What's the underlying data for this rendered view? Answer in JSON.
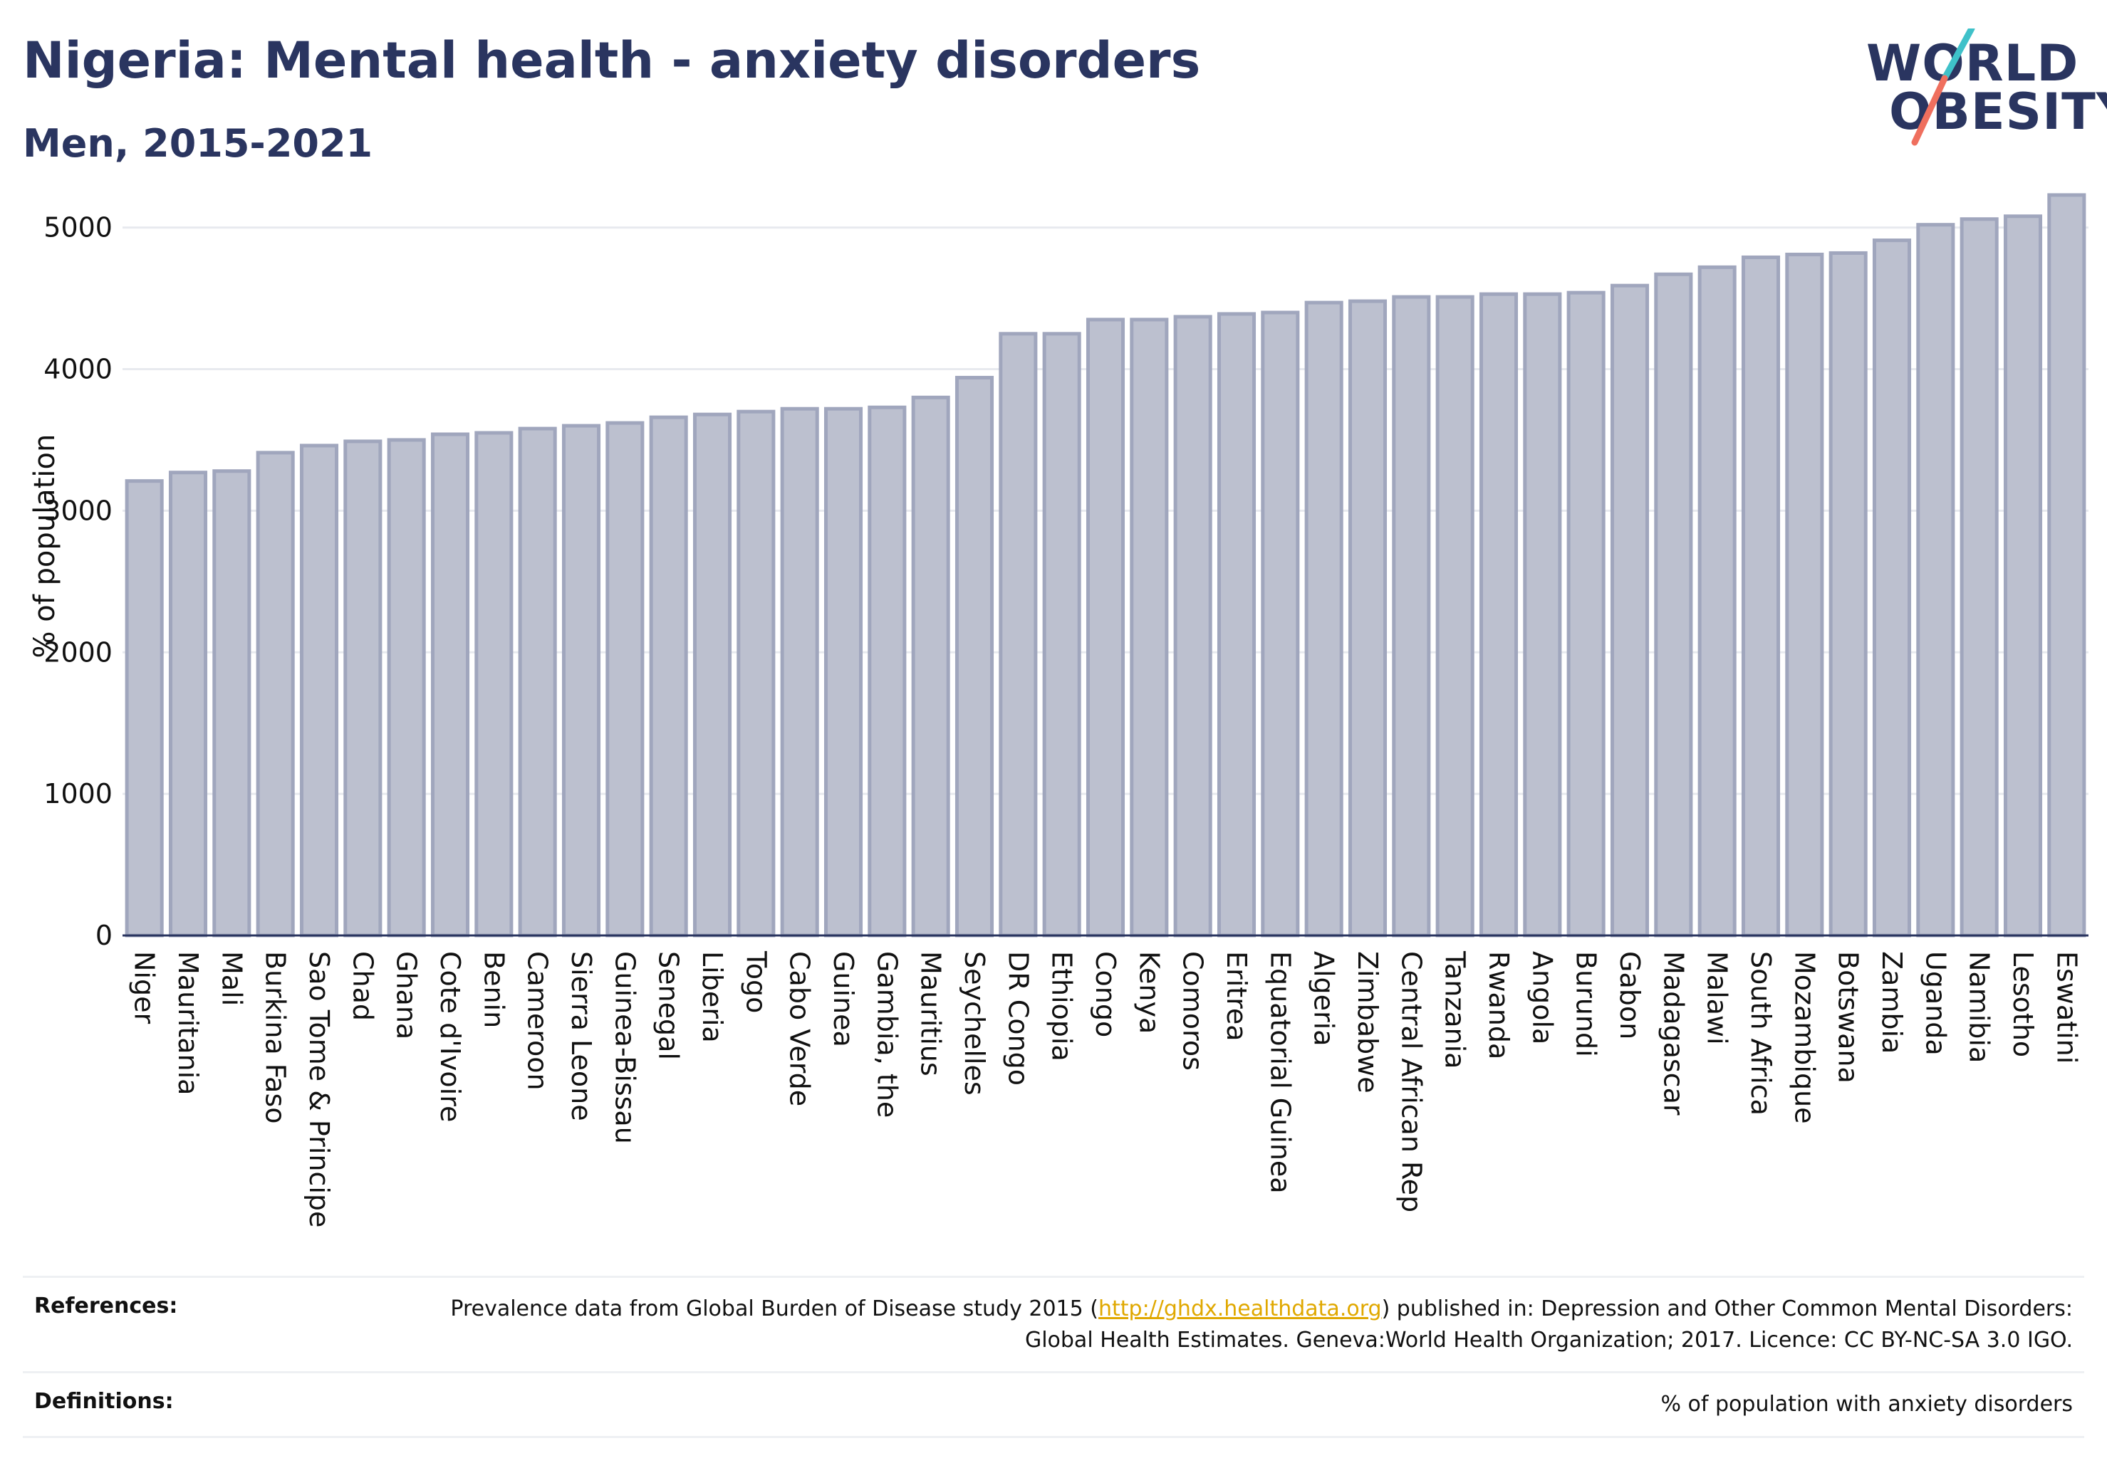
{
  "header": {
    "title": "Nigeria: Mental health - anxiety disorders",
    "subtitle": "Men, 2015-2021"
  },
  "logo": {
    "line1": "WORLD",
    "line2": "OBESITY",
    "colors": {
      "text": "#2a3560",
      "slash_top": "#3fc1c9",
      "slash_bottom": "#ef6f5e"
    }
  },
  "colors": {
    "bar_fill": "#bcc0cf",
    "bar_stroke": "#a0a6bd",
    "grid": "#e8eaef",
    "axis": "#2a3560",
    "text": "#111111",
    "link": "#e0a800"
  },
  "chart_data": {
    "type": "bar",
    "title": "",
    "xlabel": "",
    "ylabel": "% of population",
    "ylim": [
      0,
      5300
    ],
    "yticks": [
      0,
      1000,
      2000,
      3000,
      4000,
      5000
    ],
    "grid": true,
    "categories": [
      "Niger",
      "Mauritania",
      "Mali",
      "Burkina Faso",
      "Sao Tome & Principe",
      "Chad",
      "Ghana",
      "Cote d'Ivoire",
      "Benin",
      "Cameroon",
      "Sierra Leone",
      "Guinea-Bissau",
      "Senegal",
      "Liberia",
      "Togo",
      "Cabo Verde",
      "Guinea",
      "Gambia, the",
      "Mauritius",
      "Seychelles",
      "DR Congo",
      "Ethiopia",
      "Congo",
      "Kenya",
      "Comoros",
      "Eritrea",
      "Equatorial Guinea",
      "Algeria",
      "Zimbabwe",
      "Central African Rep",
      "Tanzania",
      "Rwanda",
      "Angola",
      "Burundi",
      "Gabon",
      "Madagascar",
      "Malawi",
      "South Africa",
      "Mozambique",
      "Botswana",
      "Zambia",
      "Uganda",
      "Namibia",
      "Lesotho",
      "Eswatini"
    ],
    "values": [
      3210,
      3270,
      3280,
      3410,
      3460,
      3490,
      3500,
      3540,
      3550,
      3580,
      3600,
      3620,
      3660,
      3680,
      3700,
      3720,
      3720,
      3730,
      3800,
      3940,
      4250,
      4250,
      4350,
      4350,
      4370,
      4390,
      4400,
      4470,
      4480,
      4510,
      4510,
      4530,
      4530,
      4540,
      4590,
      4670,
      4720,
      4790,
      4810,
      4820,
      4910,
      5020,
      5060,
      5080,
      5230
    ]
  },
  "references": {
    "references_label": "References:",
    "references_text_1": "Prevalence data from Global Burden of Disease study 2015 (",
    "references_link": "http://ghdx.healthdata.org",
    "references_text_2": ") published in: Depression and Other Common Mental Disorders: Global Health Estimates. Geneva:World Health Organization; 2017. Licence: CC BY-NC-SA 3.0 IGO.",
    "definitions_label": "Definitions:",
    "definitions_text": "% of population with anxiety disorders"
  }
}
